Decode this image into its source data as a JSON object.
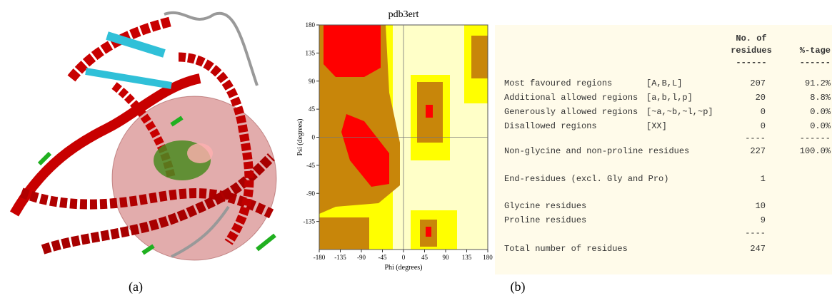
{
  "panel_labels": [
    "(a)",
    "(b)"
  ],
  "ramachandran": {
    "title": "pdb3ert",
    "x_label": "Phi (degrees)",
    "y_label": "Psi (degrees)",
    "xlim": [
      -180,
      180
    ],
    "ylim": [
      -180,
      180
    ],
    "xticks": [
      -180,
      -135,
      -90,
      -45,
      0,
      45,
      90,
      135,
      180
    ],
    "yticks": [
      -135,
      -90,
      -45,
      0,
      45,
      90,
      135,
      180
    ]
  },
  "table": {
    "header": {
      "count": [
        "No. of",
        "residues",
        "------"
      ],
      "percent": [
        "%-tage",
        "------"
      ]
    },
    "rows": [
      {
        "label": "Most favoured regions",
        "code": "[A,B,L]",
        "count": "207",
        "percent": "91.2%"
      },
      {
        "label": "Additional allowed regions",
        "code": "[a,b,l,p]",
        "count": "20",
        "percent": "8.8%"
      },
      {
        "label": "Generously allowed regions",
        "code": "[~a,~b,~l,~p]",
        "count": "0",
        "percent": "0.0%"
      },
      {
        "label": "Disallowed regions",
        "code": "[XX]",
        "count": "0",
        "percent": "0.0%"
      },
      {
        "count": "----",
        "percent": "------"
      },
      {
        "label": "Non-glycine and non-proline residues",
        "count": "227",
        "percent": "100.0%"
      },
      {
        "label": "End-residues (excl. Gly and Pro)",
        "count": "1"
      },
      {
        "label": "Glycine residues",
        "count": "10"
      },
      {
        "label": "Proline residues",
        "count": "9"
      },
      {
        "count": "----"
      },
      {
        "label": "Total number of residues",
        "count": "247"
      }
    ]
  }
}
